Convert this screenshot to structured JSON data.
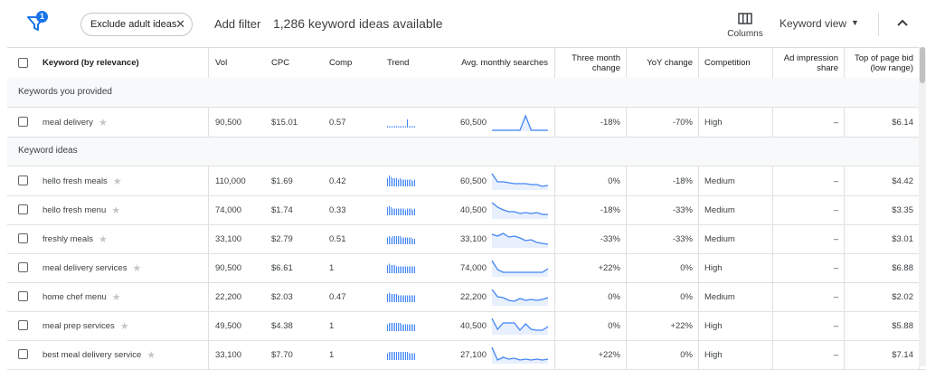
{
  "toolbar": {
    "filter_badge": "1",
    "chip_label": "Exclude adult ideas",
    "chip_close": "✕",
    "add_filter": "Add filter",
    "ideas_count": "1,286 keyword ideas available",
    "columns_label": "Columns",
    "keyword_view_label": "Keyword view",
    "keyword_view_caret": "▼"
  },
  "header": {
    "keyword": "Keyword (by relevance)",
    "vol": "Vol",
    "cpc": "CPC",
    "comp": "Comp",
    "trend": "Trend",
    "avg": "Avg. monthly searches",
    "three_month_1": "Three month",
    "three_month_2": "change",
    "yoy": "YoY change",
    "competition": "Competition",
    "ad_impr_1": "Ad impression",
    "ad_impr_2": "share",
    "top_bid_1": "Top of page bid",
    "top_bid_2": "(low range)"
  },
  "sections": {
    "provided": "Keywords you provided",
    "ideas": "Keyword ideas"
  },
  "star_glyph": "★",
  "rows": [
    {
      "keyword": "meal delivery",
      "vol": "90,500",
      "cpc": "$15.01",
      "comp": "0.57",
      "avg": "60,500",
      "three_month": "-18%",
      "yoy": "-70%",
      "competition": "High",
      "ad_share": "–",
      "top_bid": "$6.14",
      "trend": [
        1,
        1,
        1,
        1,
        1,
        1,
        1,
        1,
        1,
        1,
        1,
        6,
        1,
        1,
        1,
        1
      ],
      "spark": [
        0.95,
        0.95,
        0.95,
        0.95,
        0.95,
        0.95,
        0.15,
        0.95,
        0.95,
        0.95,
        0.95
      ]
    },
    {
      "keyword": "hello fresh meals",
      "vol": "110,000",
      "cpc": "$1.69",
      "comp": "0.42",
      "avg": "60,500",
      "three_month": "0%",
      "yoy": "-18%",
      "competition": "Medium",
      "ad_share": "–",
      "top_bid": "$4.42",
      "trend": [
        6,
        8,
        7,
        6,
        6,
        6,
        5,
        6,
        5,
        5,
        5,
        5,
        5,
        5,
        4,
        5
      ],
      "spark": [
        0.1,
        0.55,
        0.55,
        0.6,
        0.65,
        0.65,
        0.65,
        0.7,
        0.7,
        0.8,
        0.75
      ]
    },
    {
      "keyword": "hello fresh menu",
      "vol": "74,000",
      "cpc": "$1.74",
      "comp": "0.33",
      "avg": "40,500",
      "three_month": "-18%",
      "yoy": "-33%",
      "competition": "Medium",
      "ad_share": "–",
      "top_bid": "$3.35",
      "trend": [
        6,
        7,
        6,
        5,
        5,
        5,
        5,
        5,
        5,
        5,
        4,
        5,
        5,
        5,
        4,
        5
      ],
      "spark": [
        0.1,
        0.35,
        0.5,
        0.6,
        0.6,
        0.7,
        0.65,
        0.7,
        0.65,
        0.75,
        0.75
      ]
    },
    {
      "keyword": "freshly meals",
      "vol": "33,100",
      "cpc": "$2.79",
      "comp": "0.51",
      "avg": "33,100",
      "three_month": "-33%",
      "yoy": "-33%",
      "competition": "Medium",
      "ad_share": "–",
      "top_bid": "$3.01",
      "trend": [
        5,
        6,
        5,
        6,
        6,
        6,
        6,
        6,
        5,
        5,
        5,
        5,
        5,
        5,
        4,
        4
      ],
      "spark": [
        0.25,
        0.35,
        0.2,
        0.4,
        0.35,
        0.45,
        0.6,
        0.55,
        0.7,
        0.75,
        0.8
      ]
    },
    {
      "keyword": "meal delivery services",
      "vol": "90,500",
      "cpc": "$6.61",
      "comp": "1",
      "avg": "74,000",
      "three_month": "+22%",
      "yoy": "0%",
      "competition": "High",
      "ad_share": "–",
      "top_bid": "$6.88",
      "trend": [
        6,
        7,
        6,
        6,
        6,
        5,
        5,
        5,
        5,
        5,
        5,
        5,
        5,
        5,
        5,
        5
      ],
      "spark": [
        0.1,
        0.6,
        0.75,
        0.75,
        0.75,
        0.75,
        0.75,
        0.75,
        0.75,
        0.75,
        0.55
      ]
    },
    {
      "keyword": "home chef menu",
      "vol": "22,200",
      "cpc": "$2.03",
      "comp": "0.47",
      "avg": "22,200",
      "three_month": "0%",
      "yoy": "0%",
      "competition": "Medium",
      "ad_share": "–",
      "top_bid": "$2.02",
      "trend": [
        6,
        7,
        6,
        6,
        6,
        6,
        5,
        5,
        5,
        5,
        5,
        5,
        5,
        5,
        5,
        5
      ],
      "spark": [
        0.1,
        0.5,
        0.55,
        0.7,
        0.75,
        0.6,
        0.7,
        0.65,
        0.7,
        0.65,
        0.55
      ]
    },
    {
      "keyword": "meal prep services",
      "vol": "49,500",
      "cpc": "$4.38",
      "comp": "1",
      "avg": "40,500",
      "three_month": "0%",
      "yoy": "+22%",
      "competition": "High",
      "ad_share": "–",
      "top_bid": "$5.88",
      "trend": [
        5,
        6,
        6,
        6,
        6,
        6,
        6,
        6,
        5,
        5,
        5,
        5,
        5,
        5,
        5,
        5
      ],
      "spark": [
        0.1,
        0.7,
        0.35,
        0.35,
        0.35,
        0.75,
        0.4,
        0.7,
        0.75,
        0.75,
        0.55
      ]
    },
    {
      "keyword": "best meal delivery service",
      "vol": "33,100",
      "cpc": "$7.70",
      "comp": "1",
      "avg": "27,100",
      "three_month": "+22%",
      "yoy": "0%",
      "competition": "High",
      "ad_share": "–",
      "top_bid": "$7.14",
      "trend": [
        5,
        6,
        6,
        6,
        6,
        6,
        6,
        6,
        6,
        6,
        6,
        6,
        5,
        5,
        5,
        5
      ],
      "spark": [
        0.1,
        0.8,
        0.65,
        0.75,
        0.7,
        0.8,
        0.75,
        0.8,
        0.75,
        0.8,
        0.75
      ]
    }
  ],
  "colors": {
    "accent": "#1a73e8",
    "spark": "#4285f4",
    "spark_fill": "#e8f0fe"
  }
}
